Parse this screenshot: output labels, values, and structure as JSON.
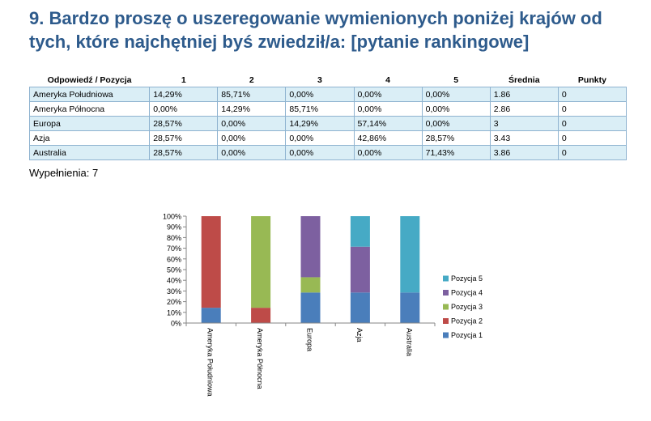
{
  "title": "9. Bardzo proszę o uszeregowanie wymienionych poniżej krajów od tych, które najchętniej byś zwiedził/a: [pytanie rankingowe]",
  "table": {
    "headers": [
      "Odpowiedź / Pozycja",
      "1",
      "2",
      "3",
      "4",
      "5",
      "Średnia",
      "Punkty"
    ],
    "rows": [
      [
        "Ameryka Południowa",
        "14,29%",
        "85,71%",
        "0,00%",
        "0,00%",
        "0,00%",
        "1.86",
        "0"
      ],
      [
        "Ameryka Północna",
        "0,00%",
        "14,29%",
        "85,71%",
        "0,00%",
        "0,00%",
        "2.86",
        "0"
      ],
      [
        "Europa",
        "28,57%",
        "0,00%",
        "14,29%",
        "57,14%",
        "0,00%",
        "3",
        "0"
      ],
      [
        "Azja",
        "28,57%",
        "0,00%",
        "0,00%",
        "42,86%",
        "28,57%",
        "3.43",
        "0"
      ],
      [
        "Australia",
        "28,57%",
        "0,00%",
        "0,00%",
        "0,00%",
        "71,43%",
        "3.86",
        "0"
      ]
    ]
  },
  "completions": {
    "label": "Wypełnienia:",
    "value": "7"
  },
  "chart_data": {
    "type": "bar",
    "stacked": true,
    "categories": [
      "Ameryka Południowa",
      "Ameryka Północna",
      "Europa",
      "Azja",
      "Australia"
    ],
    "series": [
      {
        "name": "Pozycja 1",
        "color": "#4a7ebb",
        "values": [
          14.29,
          0,
          28.57,
          28.57,
          28.57
        ]
      },
      {
        "name": "Pozycja 2",
        "color": "#be4b48",
        "values": [
          85.71,
          14.29,
          0,
          0,
          0
        ]
      },
      {
        "name": "Pozycja 3",
        "color": "#98b954",
        "values": [
          0,
          85.71,
          14.29,
          0,
          0
        ]
      },
      {
        "name": "Pozycja 4",
        "color": "#7d60a0",
        "values": [
          0,
          0,
          57.14,
          42.86,
          0
        ]
      },
      {
        "name": "Pozycja 5",
        "color": "#46aac5",
        "values": [
          0,
          0,
          0,
          28.57,
          71.43
        ]
      }
    ],
    "ylim": [
      0,
      100
    ],
    "yticks": [
      "0%",
      "10%",
      "20%",
      "30%",
      "40%",
      "50%",
      "60%",
      "70%",
      "80%",
      "90%",
      "100%"
    ],
    "legend_position": "right",
    "grid": false
  }
}
